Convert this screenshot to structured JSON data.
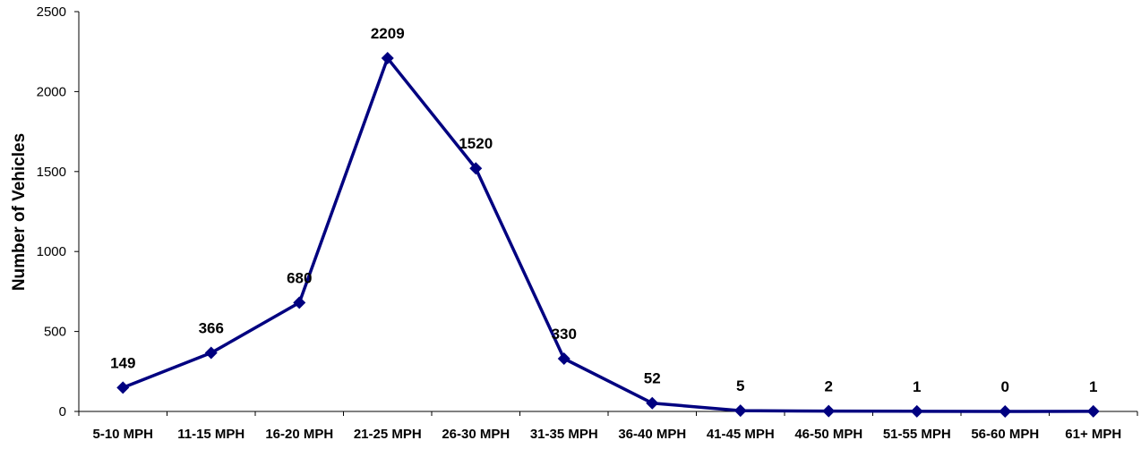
{
  "chart_data": {
    "type": "line",
    "title": "",
    "xlabel": "",
    "ylabel": "Number of Vehicles",
    "ylim": [
      0,
      2500
    ],
    "yticks": [
      0,
      500,
      1000,
      1500,
      2000,
      2500
    ],
    "grid": false,
    "legend": "none",
    "categories": [
      "5-10 MPH",
      "11-15 MPH",
      "16-20 MPH",
      "21-25 MPH",
      "26-30 MPH",
      "31-35 MPH",
      "36-40 MPH",
      "41-45 MPH",
      "46-50 MPH",
      "51-55 MPH",
      "56-60 MPH",
      "61+ MPH"
    ],
    "series": [
      {
        "values": [
          149,
          366,
          680,
          2209,
          1520,
          330,
          52,
          5,
          2,
          1,
          0,
          1
        ],
        "color": "#000080",
        "marker": "diamond"
      }
    ],
    "data_labels": true
  }
}
